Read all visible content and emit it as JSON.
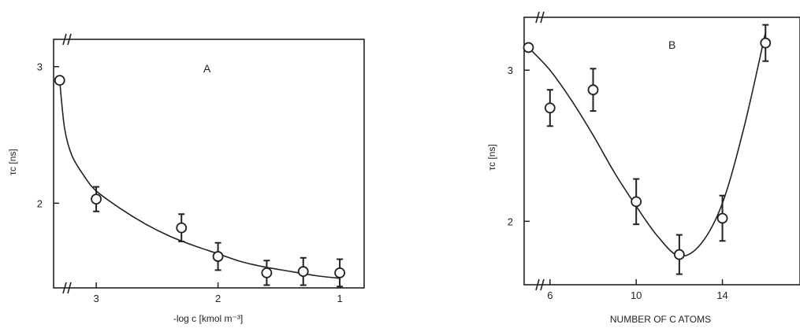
{
  "chart_data": [
    {
      "type": "scatter",
      "title": "A",
      "xlabel": "-log c [kmol m⁻³]",
      "ylabel": "τc [ns]",
      "x_reversed": true,
      "xlim": [
        3.35,
        0.8
      ],
      "ylim": [
        1.38,
        3.2
      ],
      "xticks": [
        3,
        2,
        1
      ],
      "yticks": [
        3,
        2
      ],
      "axis_breaks": true,
      "series": [
        {
          "points": [
            {
              "x": 3.3,
              "y": 2.9,
              "err": 0.0
            },
            {
              "x": 3.0,
              "y": 2.03,
              "err": 0.09
            },
            {
              "x": 2.3,
              "y": 1.82,
              "err": 0.1
            },
            {
              "x": 2.0,
              "y": 1.61,
              "err": 0.1
            },
            {
              "x": 1.6,
              "y": 1.49,
              "err": 0.09
            },
            {
              "x": 1.3,
              "y": 1.5,
              "err": 0.1
            },
            {
              "x": 1.0,
              "y": 1.49,
              "err": 0.1
            }
          ],
          "fit_curve": [
            [
              3.3,
              2.9
            ],
            [
              3.26,
              2.55
            ],
            [
              3.2,
              2.35
            ],
            [
              3.1,
              2.2
            ],
            [
              3.0,
              2.09
            ],
            [
              2.8,
              1.96
            ],
            [
              2.6,
              1.85
            ],
            [
              2.4,
              1.76
            ],
            [
              2.2,
              1.69
            ],
            [
              2.0,
              1.63
            ],
            [
              1.8,
              1.57
            ],
            [
              1.6,
              1.53
            ],
            [
              1.4,
              1.5
            ],
            [
              1.2,
              1.47
            ],
            [
              1.0,
              1.45
            ]
          ]
        }
      ]
    },
    {
      "type": "scatter",
      "title": "B",
      "xlabel": "NUMBER OF C ATOMS",
      "ylabel": "τc [ns]",
      "xlim": [
        4.8,
        17.6
      ],
      "ylim": [
        1.58,
        3.35
      ],
      "xticks": [
        6,
        10,
        14
      ],
      "yticks": [
        3,
        2
      ],
      "axis_breaks": true,
      "series": [
        {
          "points": [
            {
              "x": 5,
              "y": 3.15,
              "err": 0.0
            },
            {
              "x": 6,
              "y": 2.75,
              "err": 0.12
            },
            {
              "x": 8,
              "y": 2.87,
              "err": 0.14
            },
            {
              "x": 10,
              "y": 2.13,
              "err": 0.15
            },
            {
              "x": 12,
              "y": 1.78,
              "err": 0.13
            },
            {
              "x": 14,
              "y": 2.02,
              "err": 0.15
            },
            {
              "x": 16,
              "y": 3.18,
              "err": 0.12
            }
          ],
          "fit_curve": [
            [
              5,
              3.15
            ],
            [
              6,
              3.0
            ],
            [
              7,
              2.8
            ],
            [
              8,
              2.57
            ],
            [
              9,
              2.32
            ],
            [
              10,
              2.1
            ],
            [
              11,
              1.9
            ],
            [
              12,
              1.77
            ],
            [
              13,
              1.85
            ],
            [
              14,
              2.12
            ],
            [
              15,
              2.62
            ],
            [
              16,
              3.25
            ]
          ]
        }
      ]
    }
  ]
}
